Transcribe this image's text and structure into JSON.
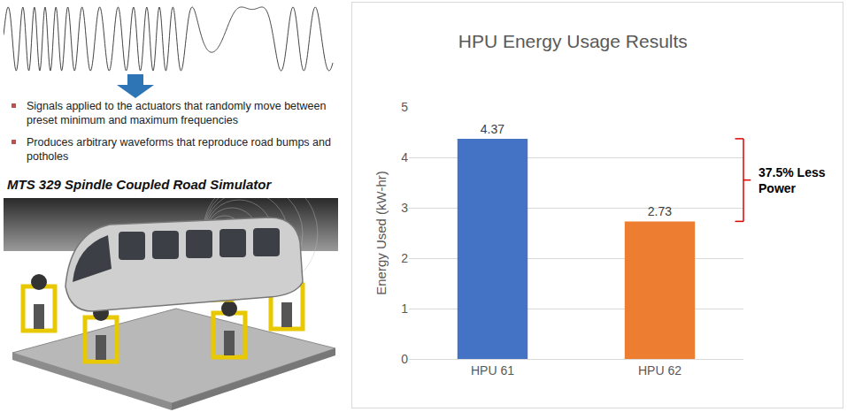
{
  "slide": {
    "bullets": [
      "Signals applied to the actuators that randomly move between preset minimum and maximum frequencies",
      "Produces arbitrary waveforms that reproduce road bumps and potholes"
    ],
    "caption": "MTS 329 Spindle Coupled Road Simulator"
  },
  "chart_data": {
    "type": "bar",
    "title": "HPU Energy Usage Results",
    "categories": [
      "HPU 61",
      "HPU 62"
    ],
    "values": [
      4.37,
      2.73
    ],
    "colors": [
      "#4472c4",
      "#ed7d31"
    ],
    "y_label": "Energy Used (kW-hr)",
    "ylim": [
      0,
      5
    ],
    "yticks": [
      0,
      1,
      2,
      3,
      4,
      5
    ],
    "grid": true,
    "data_labels": true,
    "annotation": "37.5% Less Power"
  }
}
